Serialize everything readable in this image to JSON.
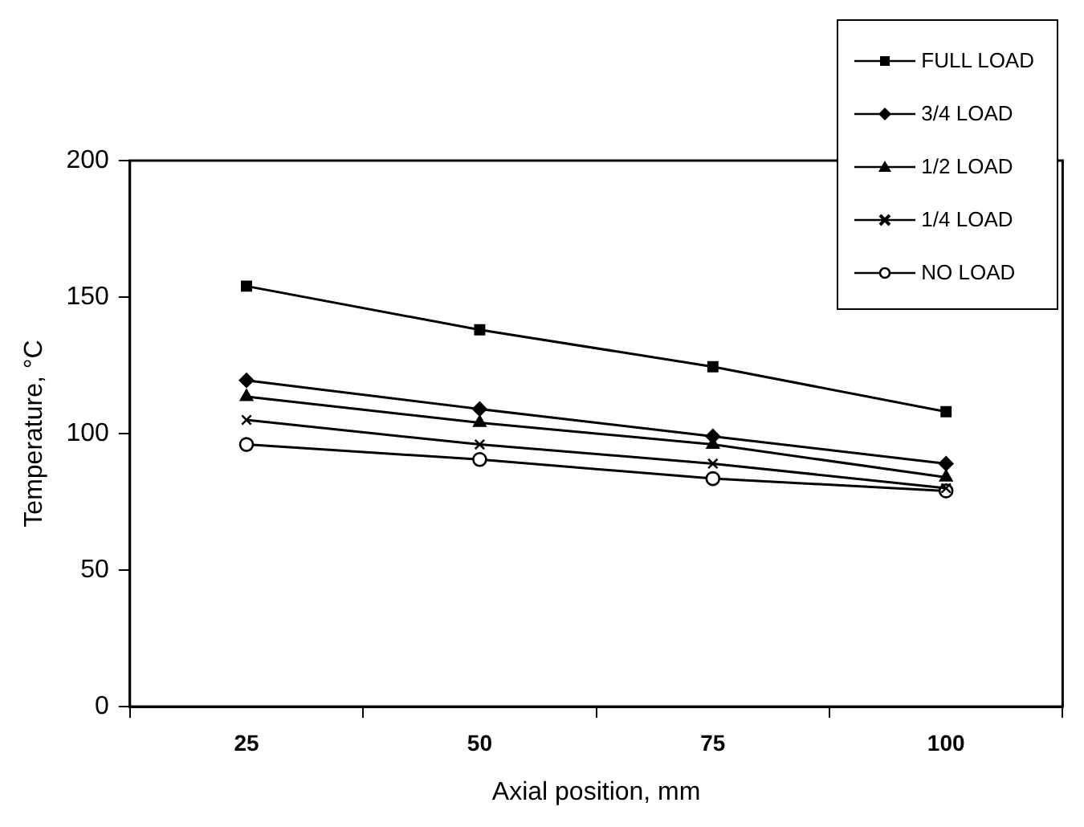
{
  "chart_data": {
    "type": "line",
    "xlabel": "Axial position, mm",
    "ylabel": "Temperature, °C",
    "categories": [
      "25",
      "50",
      "75",
      "100"
    ],
    "ylim": [
      0,
      200
    ],
    "yticks": [
      0,
      50,
      100,
      150,
      200
    ],
    "grid": false,
    "legend": "top right",
    "line_style": "solid",
    "series": [
      {
        "name": "FULL LOAD",
        "color": "#000000",
        "marker": "square",
        "values": [
          154,
          138,
          124.5,
          108
        ]
      },
      {
        "name": "3/4 LOAD",
        "color": "#000000",
        "marker": "diamond",
        "values": [
          119.5,
          109,
          99,
          89
        ]
      },
      {
        "name": "1/2 LOAD",
        "color": "#000000",
        "marker": "triangle",
        "values": [
          113.5,
          104,
          96,
          84
        ]
      },
      {
        "name": "1/4 LOAD",
        "color": "#000000",
        "marker": "cross",
        "values": [
          105,
          96,
          89,
          80
        ]
      },
      {
        "name": "NO LOAD",
        "color": "#000000",
        "marker": "circle",
        "values": [
          96,
          90.5,
          83.5,
          79
        ]
      }
    ]
  }
}
